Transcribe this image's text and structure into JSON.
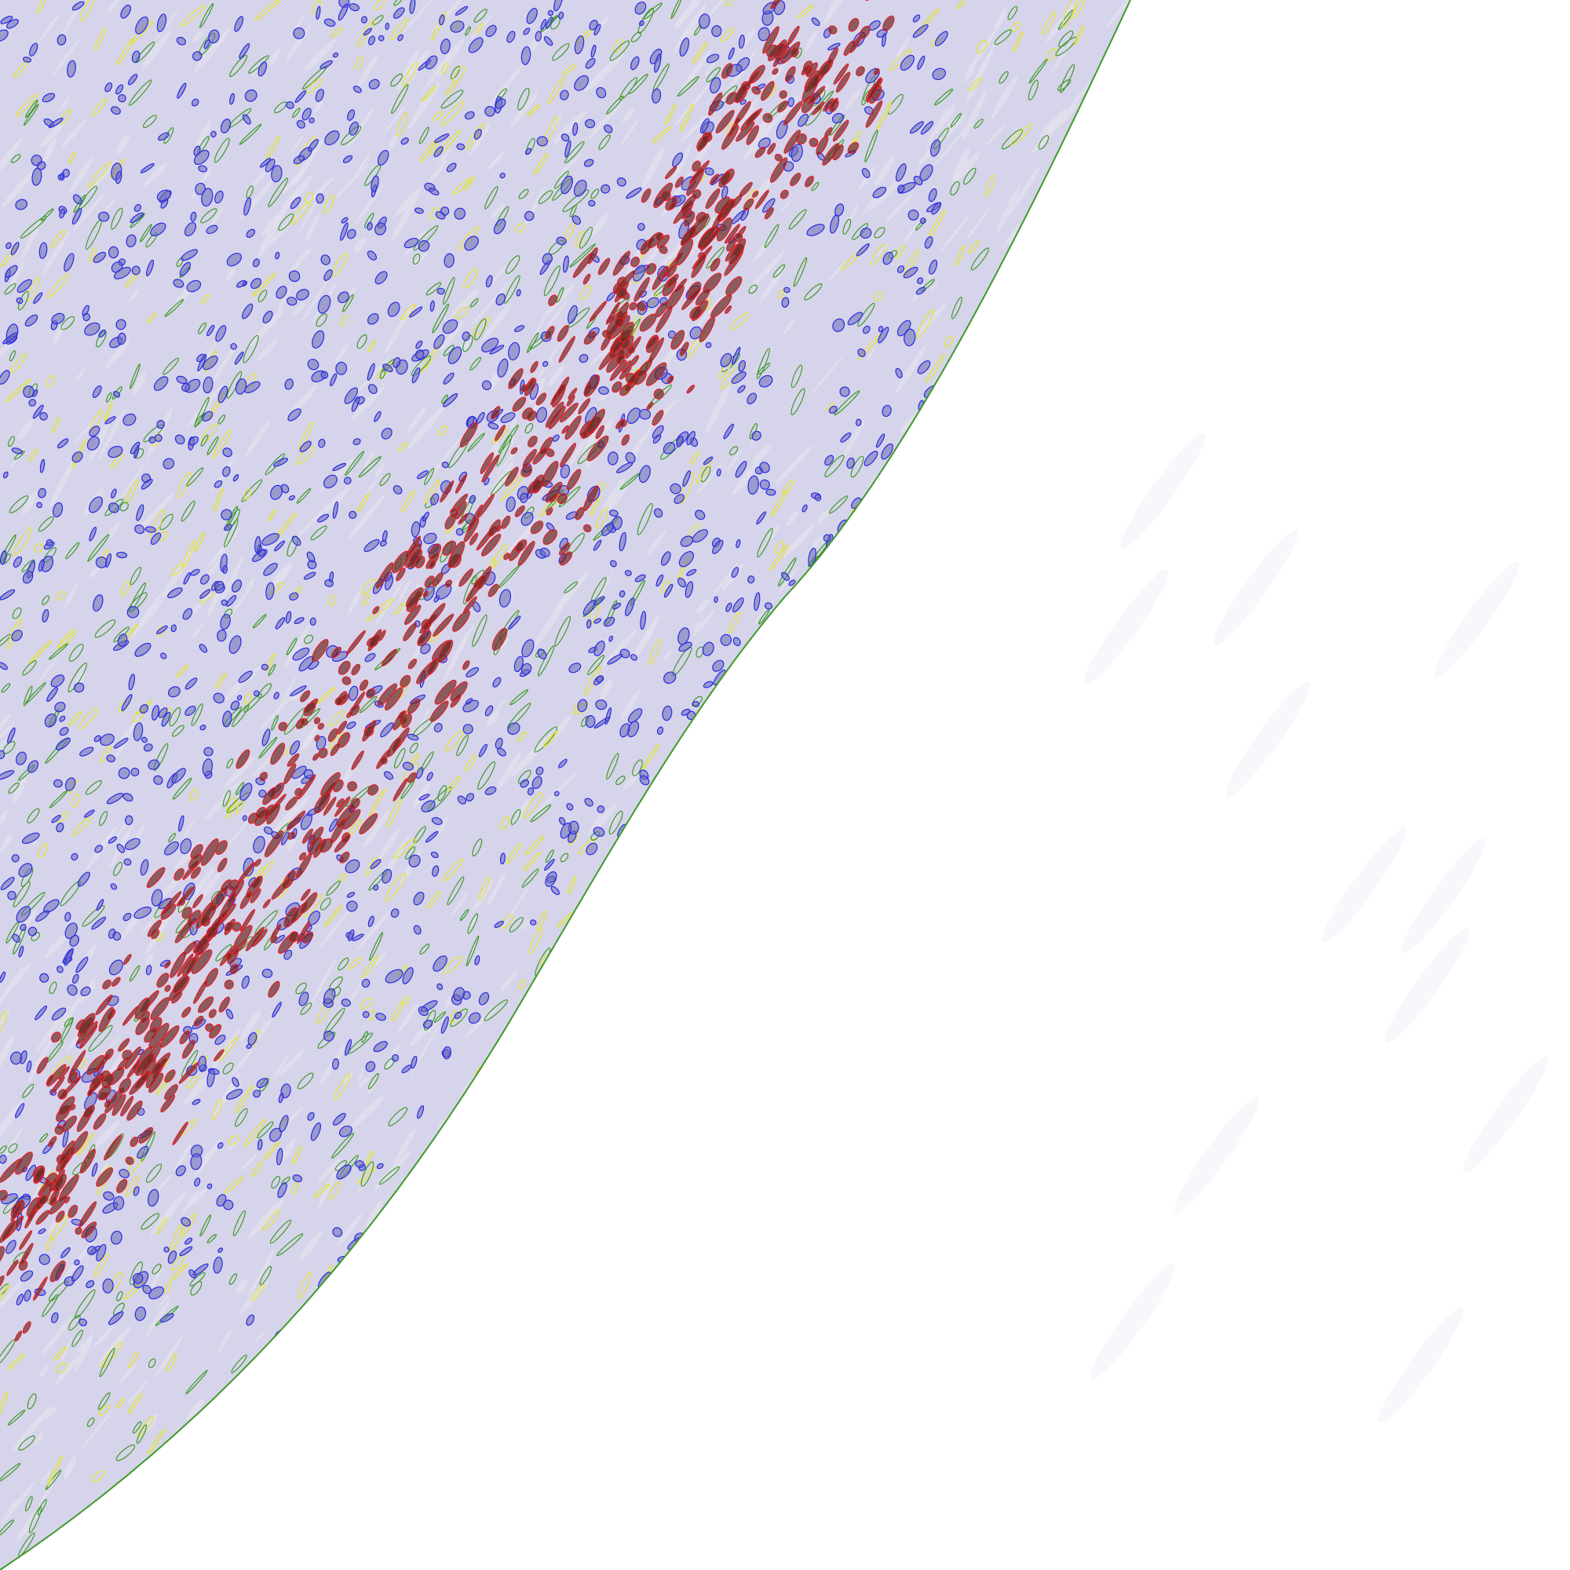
{
  "image": {
    "kind": "histology tissue section with segmentation overlay",
    "background_color": "#ffffff",
    "tissue_base_color": "#d6d4ea",
    "stain_colors": {
      "hematoxylin": "#6a6ab4",
      "dab_brown": "#6b2a24",
      "stroma": "#e2e0ee"
    },
    "overlay_colors": {
      "positive_outline": "#e0202a",
      "negative_outline": "#2a2ae6",
      "stroma_outline": "#3f9a2a",
      "other_outline": "#e6e62a"
    }
  }
}
